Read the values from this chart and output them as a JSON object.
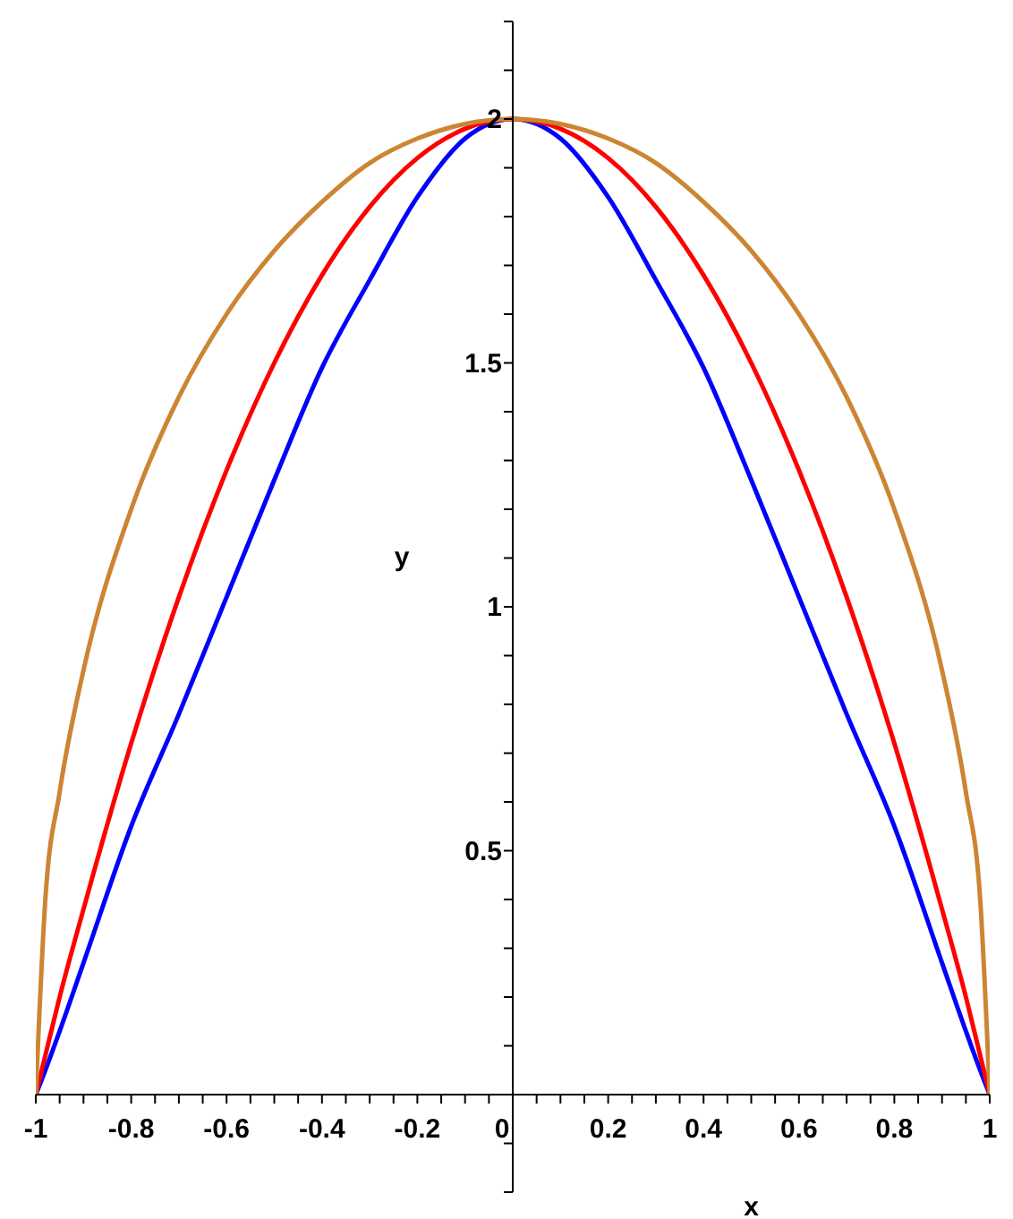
{
  "chart_data": {
    "type": "line",
    "xlabel": "x",
    "ylabel": "y",
    "x": [
      -1,
      -0.98,
      -0.95,
      -0.9,
      -0.8,
      -0.7,
      -0.6,
      -0.5,
      -0.4,
      -0.3,
      -0.2,
      -0.1,
      0,
      0.1,
      0.2,
      0.3,
      0.4,
      0.5,
      0.6,
      0.7,
      0.8,
      0.9,
      0.95,
      0.98,
      1
    ],
    "series": [
      {
        "color": "#0000ff",
        "values": [
          0,
          0.05,
          0.13,
          0.27,
          0.55,
          0.78,
          1.02,
          1.26,
          1.49,
          1.67,
          1.84,
          1.96,
          2,
          1.96,
          1.84,
          1.67,
          1.49,
          1.26,
          1.02,
          0.78,
          0.55,
          0.27,
          0.13,
          0.05,
          0
        ]
      },
      {
        "color": "#ff0000",
        "values": [
          0,
          0.08,
          0.2,
          0.38,
          0.72,
          1.02,
          1.28,
          1.5,
          1.68,
          1.82,
          1.92,
          1.98,
          2,
          1.98,
          1.92,
          1.82,
          1.68,
          1.5,
          1.28,
          1.02,
          0.72,
          0.38,
          0.2,
          0.08,
          0
        ]
      },
      {
        "color": "#cc8533",
        "values": [
          0,
          0.4,
          0.62,
          0.87,
          1.2,
          1.43,
          1.6,
          1.73,
          1.83,
          1.91,
          1.96,
          1.99,
          2,
          1.99,
          1.96,
          1.91,
          1.83,
          1.73,
          1.6,
          1.43,
          1.2,
          0.87,
          0.62,
          0.4,
          0
        ]
      }
    ],
    "xlim": [
      -1,
      1
    ],
    "xticks": [
      -1,
      {
        "value": -0.95,
        "label": null
      },
      {
        "value": -0.9,
        "label": null
      },
      {
        "value": -0.85,
        "label": null
      },
      -0.8,
      {
        "value": -0.75,
        "label": null
      },
      {
        "value": -0.7,
        "label": null
      },
      {
        "value": -0.65,
        "label": null
      },
      -0.6,
      {
        "value": -0.55,
        "label": null
      },
      {
        "value": -0.5,
        "label": null
      },
      {
        "value": -0.45,
        "label": null
      },
      -0.4,
      {
        "value": -0.35,
        "label": null
      },
      {
        "value": -0.3,
        "label": null
      },
      {
        "value": -0.25,
        "label": null
      },
      -0.2,
      {
        "value": -0.15,
        "label": null
      },
      {
        "value": -0.1,
        "label": null
      },
      {
        "value": -0.05,
        "label": null
      },
      0,
      {
        "value": 0.05,
        "label": null
      },
      {
        "value": 0.1,
        "label": null
      },
      {
        "value": 0.15,
        "label": null
      },
      0.2,
      {
        "value": 0.25,
        "label": null
      },
      {
        "value": 0.3,
        "label": null
      },
      {
        "value": 0.35,
        "label": null
      },
      0.4,
      {
        "value": 0.45,
        "label": null
      },
      {
        "value": 0.5,
        "label": null
      },
      {
        "value": 0.55,
        "label": null
      },
      0.6,
      {
        "value": 0.65,
        "label": null
      },
      {
        "value": 0.7,
        "label": null
      },
      {
        "value": 0.75,
        "label": null
      },
      0.8,
      {
        "value": 0.85,
        "label": null
      },
      {
        "value": 0.9,
        "label": null
      },
      {
        "value": 0.95,
        "label": null
      },
      1
    ],
    "ylim": [
      -0.2,
      2.2
    ],
    "yticks": [
      {
        "value": -0.2,
        "label": null
      },
      {
        "value": -0.1,
        "label": null
      },
      {
        "value": 0,
        "label": null
      },
      {
        "value": 0.1,
        "label": null
      },
      {
        "value": 0.2,
        "label": null
      },
      {
        "value": 0.3,
        "label": null
      },
      {
        "value": 0.4,
        "label": null
      },
      0.5,
      {
        "value": 0.6,
        "label": null
      },
      {
        "value": 0.7,
        "label": null
      },
      {
        "value": 0.8,
        "label": null
      },
      {
        "value": 0.9,
        "label": null
      },
      1,
      {
        "value": 1.1,
        "label": null
      },
      {
        "value": 1.2,
        "label": null
      },
      {
        "value": 1.3,
        "label": null
      },
      {
        "value": 1.4,
        "label": null
      },
      1.5,
      {
        "value": 1.6,
        "label": null
      },
      {
        "value": 1.7,
        "label": null
      },
      {
        "value": 1.8,
        "label": null
      },
      {
        "value": 1.9,
        "label": null
      },
      2,
      {
        "value": 2.1,
        "label": null
      },
      {
        "value": 2.2,
        "label": null
      }
    ],
    "grid": false,
    "legend": false
  }
}
